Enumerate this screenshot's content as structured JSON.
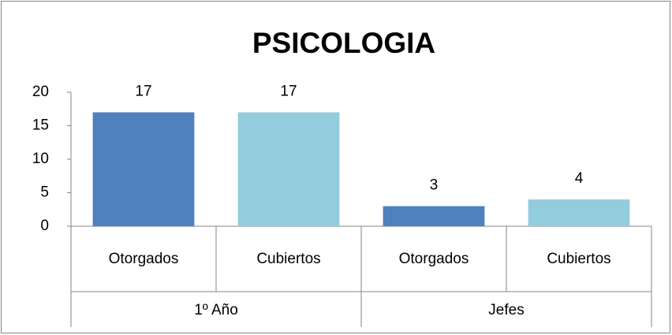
{
  "chart_data": {
    "type": "bar",
    "title": "PSICOLOGIA",
    "categories": [
      "Otorgados",
      "Cubiertos",
      "Otorgados",
      "Cubiertos"
    ],
    "groups": [
      {
        "name": "1º Año",
        "size": 2
      },
      {
        "name": "Jefes",
        "size": 2
      }
    ],
    "values": [
      17,
      17,
      3,
      4
    ],
    "colors": [
      "#4f81bd",
      "#93cddd",
      "#4f81bd",
      "#93cddd"
    ],
    "ylim": [
      0,
      20
    ],
    "yticks": [
      0,
      5,
      10,
      15,
      20
    ],
    "grid": false
  }
}
